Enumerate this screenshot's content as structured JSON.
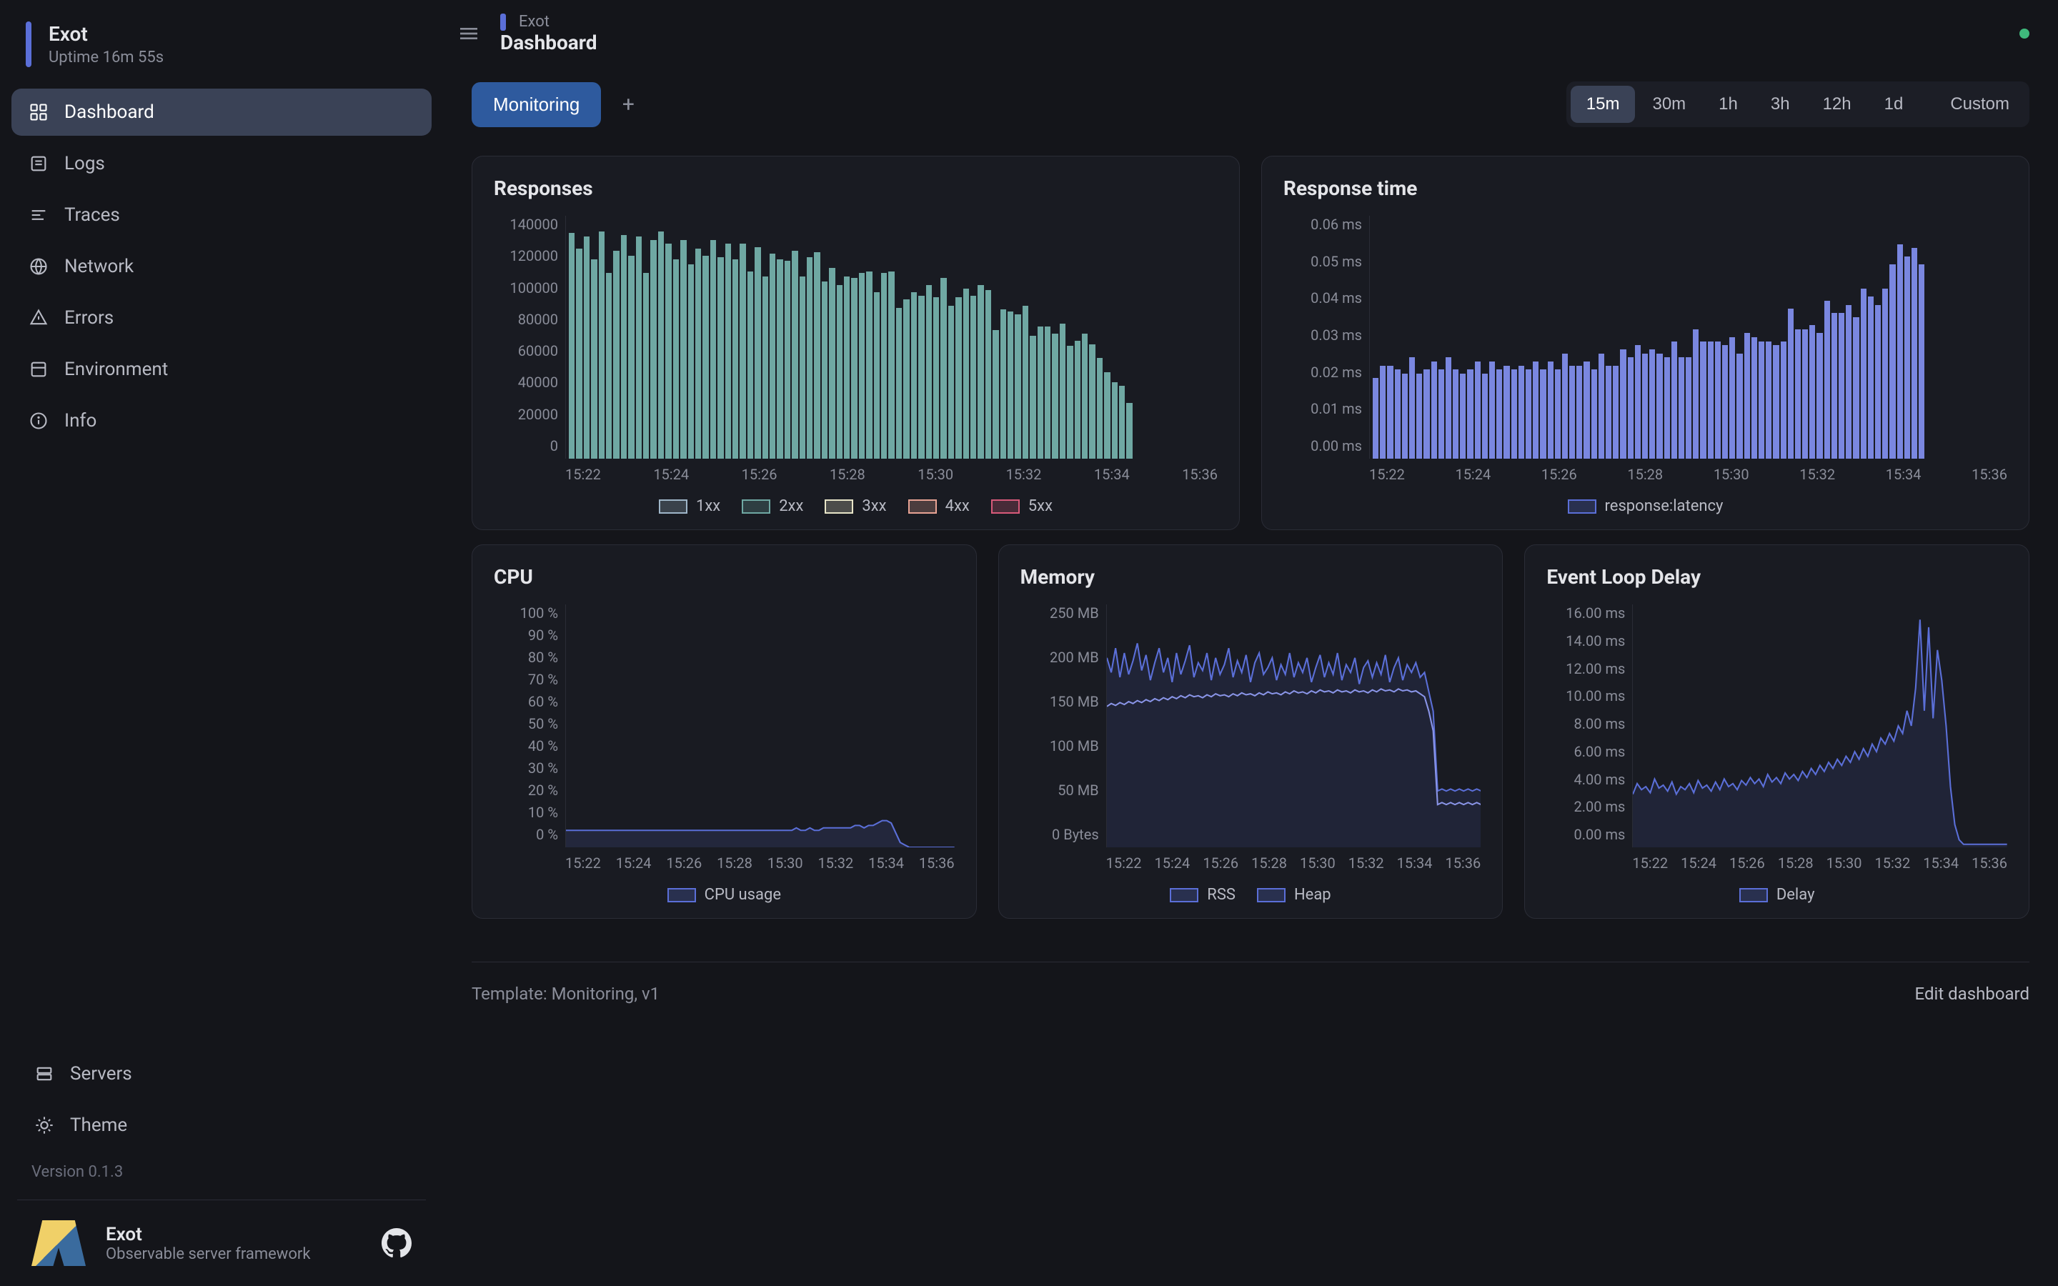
{
  "sidebar": {
    "app_name": "Exot",
    "uptime": "Uptime 16m 55s",
    "nav": [
      {
        "label": "Dashboard",
        "icon": "dashboard",
        "active": true
      },
      {
        "label": "Logs",
        "icon": "logs"
      },
      {
        "label": "Traces",
        "icon": "traces"
      },
      {
        "label": "Network",
        "icon": "network"
      },
      {
        "label": "Errors",
        "icon": "errors"
      },
      {
        "label": "Environment",
        "icon": "env"
      },
      {
        "label": "Info",
        "icon": "info"
      }
    ],
    "bottom": [
      {
        "label": "Servers",
        "icon": "servers"
      },
      {
        "label": "Theme",
        "icon": "theme"
      }
    ],
    "version": "Version 0.1.3",
    "brand_name": "Exot",
    "brand_sub": "Observable server framework"
  },
  "header": {
    "crumb_parent": "Exot",
    "crumb_title": "Dashboard"
  },
  "toolbar": {
    "tab_label": "Monitoring",
    "time_ranges": [
      "15m",
      "30m",
      "1h",
      "3h",
      "12h",
      "1d"
    ],
    "time_custom": "Custom",
    "active_range": "15m"
  },
  "charts": {
    "responses": {
      "title": "Responses",
      "type": "bar",
      "y_ticks": [
        "140000",
        "120000",
        "100000",
        "80000",
        "60000",
        "40000",
        "20000",
        "0"
      ],
      "ylim": [
        0,
        140000
      ],
      "x_ticks": [
        "15:22",
        "15:24",
        "15:26",
        "15:28",
        "15:30",
        "15:32",
        "15:34",
        "15:36"
      ],
      "bar_color": "#6fa8a3",
      "values": [
        130000,
        121000,
        128000,
        115000,
        131000,
        107000,
        120000,
        129000,
        117000,
        128000,
        107000,
        126000,
        131000,
        124000,
        115000,
        126000,
        112000,
        121000,
        117000,
        126000,
        116000,
        124000,
        115000,
        124000,
        108000,
        122000,
        105000,
        118000,
        115000,
        114000,
        120000,
        105000,
        116000,
        119000,
        102000,
        110000,
        100000,
        105000,
        104000,
        107000,
        108000,
        96000,
        107000,
        108000,
        87000,
        92000,
        96000,
        94000,
        100000,
        93000,
        104000,
        88000,
        93000,
        98000,
        94000,
        100000,
        97000,
        74000,
        86000,
        85000,
        83000,
        88000,
        71000,
        76000,
        76000,
        72000,
        78000,
        65000,
        68000,
        72000,
        66000,
        58000,
        50000,
        44000,
        42000,
        32000,
        0,
        0,
        0,
        0,
        0,
        0,
        0,
        0,
        0,
        0,
        0
      ],
      "legend": [
        {
          "label": "1xx",
          "color": "#9fb6c9"
        },
        {
          "label": "2xx",
          "color": "#6fa8a3"
        },
        {
          "label": "3xx",
          "color": "#e8e5c8"
        },
        {
          "label": "4xx",
          "color": "#e8a394"
        },
        {
          "label": "5xx",
          "color": "#d85a7a"
        }
      ]
    },
    "response_time": {
      "title": "Response time",
      "type": "bar",
      "y_ticks": [
        "0.06 ms",
        "0.05 ms",
        "0.04 ms",
        "0.03 ms",
        "0.02 ms",
        "0.01 ms",
        "0.00 ms"
      ],
      "ylim": [
        0,
        0.06
      ],
      "x_ticks": [
        "15:22",
        "15:24",
        "15:26",
        "15:28",
        "15:30",
        "15:32",
        "15:34",
        "15:36"
      ],
      "bar_color": "#7a87e0",
      "values": [
        0.02,
        0.023,
        0.023,
        0.022,
        0.021,
        0.025,
        0.021,
        0.022,
        0.024,
        0.022,
        0.025,
        0.022,
        0.021,
        0.022,
        0.024,
        0.021,
        0.024,
        0.022,
        0.023,
        0.022,
        0.023,
        0.022,
        0.024,
        0.022,
        0.024,
        0.022,
        0.026,
        0.023,
        0.023,
        0.024,
        0.022,
        0.026,
        0.023,
        0.023,
        0.027,
        0.025,
        0.028,
        0.026,
        0.027,
        0.026,
        0.025,
        0.029,
        0.025,
        0.025,
        0.032,
        0.029,
        0.029,
        0.029,
        0.028,
        0.03,
        0.026,
        0.031,
        0.03,
        0.029,
        0.029,
        0.028,
        0.029,
        0.037,
        0.032,
        0.032,
        0.033,
        0.031,
        0.039,
        0.036,
        0.036,
        0.038,
        0.035,
        0.042,
        0.04,
        0.038,
        0.042,
        0.048,
        0.053,
        0.05,
        0.052,
        0.048,
        0,
        0,
        0,
        0,
        0,
        0,
        0,
        0,
        0,
        0,
        0
      ],
      "legend": [
        {
          "label": "response:latency",
          "color": "#5b6fd8"
        }
      ]
    },
    "cpu": {
      "title": "CPU",
      "type": "line",
      "y_ticks": [
        "100 %",
        "90 %",
        "80 %",
        "70 %",
        "60 %",
        "50 %",
        "40 %",
        "30 %",
        "20 %",
        "10 %",
        "0 %"
      ],
      "ylim": [
        0,
        100
      ],
      "x_ticks": [
        "15:22",
        "15:24",
        "15:26",
        "15:28",
        "15:30",
        "15:32",
        "15:34",
        "15:36"
      ],
      "line_color": "#5b6fd8",
      "fill_color": "rgba(91,111,216,0.15)",
      "values": [
        7,
        7,
        7,
        7,
        7,
        7,
        7,
        7,
        7,
        7,
        7,
        7,
        7,
        7,
        7,
        7,
        7,
        7,
        7,
        7,
        7,
        7,
        7,
        7,
        7,
        7,
        7,
        7,
        7,
        7,
        7,
        7,
        7,
        7,
        7,
        7,
        7,
        7,
        7,
        7,
        7,
        7,
        7,
        7,
        7,
        7,
        7,
        7,
        7,
        7,
        7,
        8,
        7,
        7,
        8,
        7,
        7,
        8,
        8,
        8,
        8,
        8,
        8,
        8,
        9,
        9,
        8,
        9,
        9,
        10,
        11,
        11,
        10,
        6,
        2,
        1,
        0,
        0,
        0,
        0,
        0,
        0,
        0,
        0,
        0,
        0,
        0
      ],
      "legend": [
        {
          "label": "CPU usage",
          "color": "#5b6fd8"
        }
      ]
    },
    "memory": {
      "title": "Memory",
      "type": "line",
      "y_ticks": [
        "250 MB",
        "200 MB",
        "150 MB",
        "100 MB",
        "50 MB",
        "0 Bytes"
      ],
      "ylim": [
        0,
        250
      ],
      "x_ticks": [
        "15:22",
        "15:24",
        "15:26",
        "15:28",
        "15:30",
        "15:32",
        "15:34",
        "15:36"
      ],
      "series": [
        {
          "name": "RSS",
          "color": "#5b6fd8",
          "fill": "rgba(91,111,216,0.12)",
          "values": [
            195,
            180,
            205,
            175,
            200,
            178,
            192,
            210,
            182,
            198,
            172,
            190,
            205,
            180,
            195,
            170,
            200,
            178,
            192,
            208,
            175,
            190,
            182,
            200,
            172,
            195,
            178,
            188,
            205,
            175,
            192,
            180,
            198,
            170,
            190,
            200,
            178,
            185,
            195,
            172,
            188,
            178,
            200,
            175,
            190,
            180,
            195,
            170,
            185,
            198,
            175,
            190,
            178,
            200,
            172,
            188,
            180,
            195,
            168,
            185,
            192,
            175,
            190,
            178,
            198,
            170,
            185,
            195,
            172,
            188,
            180,
            190,
            175,
            180,
            160,
            140,
            58,
            60,
            58,
            60,
            58,
            60,
            58,
            60,
            58,
            60,
            58
          ]
        },
        {
          "name": "Heap",
          "color": "#8a95e8",
          "fill": "none",
          "values": [
            145,
            148,
            146,
            149,
            147,
            150,
            148,
            151,
            149,
            152,
            150,
            153,
            151,
            154,
            152,
            155,
            153,
            156,
            154,
            157,
            155,
            156,
            154,
            157,
            155,
            158,
            156,
            157,
            155,
            158,
            156,
            159,
            157,
            158,
            156,
            159,
            157,
            160,
            158,
            159,
            157,
            160,
            158,
            161,
            159,
            160,
            158,
            161,
            159,
            162,
            160,
            161,
            159,
            162,
            160,
            161,
            159,
            162,
            160,
            161,
            159,
            162,
            160,
            163,
            161,
            162,
            160,
            163,
            161,
            162,
            160,
            161,
            158,
            155,
            140,
            120,
            44,
            46,
            44,
            46,
            44,
            46,
            44,
            46,
            44,
            46,
            44
          ]
        }
      ],
      "legend": [
        {
          "label": "RSS",
          "color": "#5b6fd8"
        },
        {
          "label": "Heap",
          "color": "#5b6fd8"
        }
      ]
    },
    "eventloop": {
      "title": "Event Loop Delay",
      "type": "line",
      "y_ticks": [
        "16.00 ms",
        "14.00 ms",
        "12.00 ms",
        "10.00 ms",
        "8.00 ms",
        "6.00 ms",
        "4.00 ms",
        "2.00 ms",
        "0.00 ms"
      ],
      "ylim": [
        0,
        16
      ],
      "x_ticks": [
        "15:22",
        "15:24",
        "15:26",
        "15:28",
        "15:30",
        "15:32",
        "15:34",
        "15:36"
      ],
      "line_color": "#5b6fd8",
      "fill_color": "rgba(91,111,216,0.12)",
      "values": [
        3.5,
        4.2,
        3.8,
        4.0,
        3.6,
        4.5,
        3.9,
        4.1,
        3.7,
        4.3,
        3.5,
        4.0,
        3.8,
        4.2,
        3.6,
        4.4,
        3.9,
        4.1,
        3.7,
        4.3,
        3.8,
        4.5,
        4.0,
        4.2,
        3.8,
        4.4,
        4.1,
        4.6,
        4.2,
        4.5,
        4.0,
        4.8,
        4.3,
        4.6,
        4.2,
        4.9,
        4.5,
        4.8,
        4.4,
        5.0,
        4.6,
        5.2,
        4.8,
        5.4,
        5.0,
        5.6,
        5.2,
        5.8,
        5.4,
        6.0,
        5.6,
        6.3,
        5.8,
        6.5,
        6.0,
        6.8,
        6.3,
        7.2,
        6.8,
        7.5,
        7.0,
        8.0,
        7.5,
        9.0,
        8.0,
        10.5,
        15.0,
        9.0,
        14.5,
        8.5,
        13.0,
        11.0,
        8.0,
        4.0,
        1.5,
        0.5,
        0.2,
        0.2,
        0.2,
        0.2,
        0.2,
        0.2,
        0.2,
        0.2,
        0.2,
        0.2,
        0.2
      ],
      "legend": [
        {
          "label": "Delay",
          "color": "#5b6fd8"
        }
      ]
    }
  },
  "footer": {
    "template": "Template: Monitoring, v1",
    "edit": "Edit dashboard"
  },
  "colors": {
    "bg": "#14151a",
    "panel_bg": "#191b22",
    "border": "#2a2c36",
    "text": "#e4e5e9",
    "text_muted": "#8a8d99",
    "accent": "#5b6fd8"
  }
}
